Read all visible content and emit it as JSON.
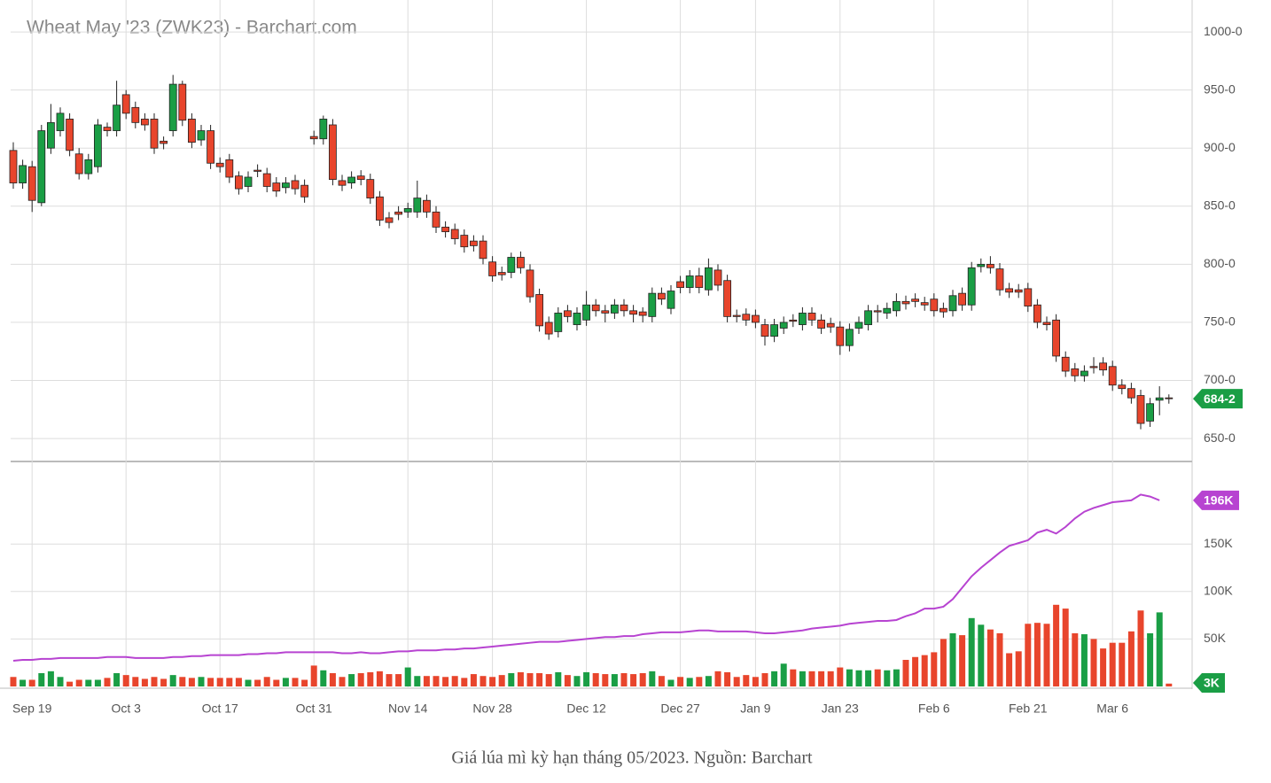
{
  "chart_data": {
    "type": "candlestick",
    "title": "Wheat May '23 (ZWK23) - Barchart.com",
    "caption": "Giá lúa mì kỳ hạn tháng 05/2023. Nguồn: Barchart",
    "categories": [
      null,
      null,
      "Sep 19",
      null,
      null,
      null,
      null,
      null,
      null,
      null,
      null,
      null,
      "Oct 3",
      null,
      null,
      null,
      null,
      null,
      null,
      null,
      null,
      null,
      "Oct 17",
      null,
      null,
      null,
      null,
      null,
      null,
      null,
      null,
      null,
      "Oct 31",
      null,
      null,
      null,
      null,
      null,
      null,
      null,
      null,
      null,
      "Nov 14",
      null,
      null,
      null,
      null,
      null,
      null,
      null,
      null,
      "Nov 28",
      null,
      null,
      null,
      null,
      null,
      null,
      null,
      null,
      null,
      "Dec 12",
      null,
      null,
      null,
      null,
      null,
      null,
      null,
      null,
      null,
      "Dec 27",
      null,
      null,
      null,
      null,
      null,
      null,
      null,
      "Jan 9",
      null,
      null,
      null,
      null,
      null,
      null,
      null,
      null,
      "Jan 23",
      null,
      null,
      null,
      null,
      null,
      null,
      null,
      null,
      null,
      "Feb 6",
      null,
      null,
      null,
      null,
      null,
      null,
      null,
      null,
      null,
      "Feb 21",
      null,
      null,
      null,
      null,
      null,
      null,
      null,
      null,
      "Mar 6",
      null,
      null,
      null,
      null,
      null,
      null
    ],
    "open": [
      898,
      870,
      884,
      853,
      900,
      915,
      925,
      895,
      878,
      884,
      918,
      915,
      946,
      935,
      925,
      925,
      906,
      915,
      955,
      925,
      907,
      915,
      887,
      890,
      876,
      867,
      881,
      878,
      870,
      866,
      872,
      868,
      910,
      908,
      920,
      872,
      870,
      876,
      873,
      858,
      840,
      845,
      845,
      845,
      855,
      845,
      832,
      830,
      825,
      820,
      820,
      802,
      793,
      793,
      806,
      795,
      774,
      750,
      742,
      760,
      748,
      752,
      765,
      760,
      758,
      765,
      760,
      759,
      755,
      775,
      762,
      785,
      780,
      790,
      778,
      795,
      786,
      756,
      757,
      756,
      748,
      738,
      745,
      752,
      748,
      758,
      752,
      749,
      746,
      730,
      745,
      748,
      760,
      758,
      760,
      768,
      770,
      767,
      770,
      762,
      760,
      775,
      765,
      798,
      800,
      796,
      779,
      778,
      779,
      765,
      750,
      752,
      720,
      710,
      704,
      712,
      715,
      712,
      696,
      693,
      687,
      665,
      683,
      685
    ],
    "high": [
      905,
      890,
      889,
      920,
      938,
      935,
      930,
      900,
      895,
      925,
      922,
      958,
      950,
      940,
      930,
      930,
      910,
      963,
      958,
      930,
      920,
      920,
      892,
      895,
      880,
      880,
      886,
      883,
      875,
      875,
      877,
      873,
      915,
      928,
      925,
      877,
      880,
      881,
      878,
      863,
      845,
      850,
      853,
      872,
      860,
      850,
      837,
      835,
      830,
      825,
      825,
      807,
      798,
      810,
      811,
      800,
      779,
      755,
      763,
      765,
      763,
      777,
      770,
      765,
      770,
      770,
      765,
      763,
      780,
      780,
      782,
      790,
      795,
      797,
      805,
      800,
      791,
      761,
      762,
      761,
      753,
      753,
      755,
      757,
      763,
      763,
      757,
      754,
      751,
      749,
      755,
      765,
      765,
      767,
      775,
      773,
      775,
      772,
      775,
      767,
      778,
      780,
      802,
      805,
      807,
      801,
      784,
      783,
      784,
      770,
      755,
      757,
      725,
      715,
      713,
      720,
      720,
      717,
      701,
      698,
      692,
      685,
      695,
      688
    ],
    "low": [
      865,
      865,
      845,
      850,
      895,
      910,
      893,
      873,
      873,
      879,
      910,
      910,
      925,
      917,
      915,
      895,
      899,
      910,
      919,
      900,
      902,
      882,
      879,
      870,
      860,
      862,
      875,
      862,
      858,
      861,
      860,
      853,
      903,
      903,
      868,
      863,
      865,
      868,
      852,
      833,
      831,
      838,
      840,
      840,
      840,
      827,
      823,
      817,
      810,
      811,
      800,
      785,
      786,
      788,
      792,
      767,
      742,
      735,
      737,
      750,
      743,
      747,
      755,
      750,
      753,
      755,
      750,
      750,
      750,
      765,
      757,
      775,
      775,
      775,
      773,
      777,
      750,
      750,
      747,
      745,
      730,
      733,
      740,
      746,
      743,
      747,
      740,
      741,
      722,
      725,
      740,
      743,
      750,
      753,
      755,
      761,
      763,
      760,
      755,
      754,
      755,
      760,
      760,
      793,
      792,
      773,
      771,
      771,
      759,
      745,
      743,
      716,
      703,
      699,
      699,
      706,
      704,
      691,
      688,
      680,
      658,
      660,
      670,
      680
    ],
    "close": [
      870,
      885,
      855,
      915,
      922,
      930,
      898,
      878,
      890,
      920,
      915,
      937,
      930,
      922,
      920,
      900,
      904,
      955,
      924,
      905,
      915,
      887,
      884,
      875,
      865,
      875,
      880,
      867,
      863,
      870,
      865,
      858,
      908,
      925,
      873,
      868,
      875,
      873,
      857,
      838,
      836,
      843,
      848,
      857,
      845,
      832,
      828,
      822,
      815,
      816,
      805,
      790,
      791,
      806,
      797,
      772,
      747,
      740,
      758,
      755,
      758,
      765,
      760,
      758,
      765,
      760,
      757,
      756,
      775,
      770,
      777,
      780,
      790,
      780,
      797,
      782,
      755,
      755,
      752,
      750,
      738,
      748,
      750,
      751,
      758,
      752,
      745,
      746,
      730,
      744,
      750,
      760,
      759,
      762,
      768,
      766,
      768,
      765,
      760,
      759,
      773,
      765,
      797,
      800,
      797,
      778,
      776,
      776,
      764,
      750,
      748,
      721,
      708,
      704,
      708,
      711,
      709,
      696,
      693,
      685,
      663,
      680,
      685,
      684.25
    ],
    "last_label": "684-2",
    "up_color": "#1a9e45",
    "down_color": "#e8452c",
    "ylim": [
      631,
      1027.5
    ],
    "yticks": [
      {
        "value": 1000,
        "label": "1000-0"
      },
      {
        "value": 950,
        "label": "950-0"
      },
      {
        "value": 900,
        "label": "900-0"
      },
      {
        "value": 850,
        "label": "850-0"
      },
      {
        "value": 800,
        "label": "800-0"
      },
      {
        "value": 750,
        "label": "750-0"
      },
      {
        "value": 700,
        "label": "700-0"
      },
      {
        "value": 650,
        "label": "650-0"
      }
    ],
    "volume": [
      10,
      7,
      7,
      14,
      16,
      10,
      5,
      7,
      7,
      7,
      9,
      14,
      12,
      10,
      8,
      10,
      8,
      12,
      10,
      9,
      10,
      9,
      9,
      9,
      9,
      7,
      7,
      10,
      7,
      9,
      9,
      7,
      22,
      17,
      14,
      10,
      13,
      14,
      15,
      16,
      13,
      13,
      20,
      11,
      11,
      11,
      10,
      11,
      9,
      13,
      11,
      10,
      12,
      14,
      15,
      14,
      14,
      13,
      15,
      12,
      11,
      15,
      14,
      13,
      13,
      14,
      13,
      14,
      16,
      11,
      7,
      10,
      9,
      10,
      11,
      16,
      15,
      10,
      12,
      10,
      14,
      16,
      24,
      18,
      16,
      16,
      16,
      16,
      20,
      18,
      17,
      17,
      18,
      17,
      18,
      28,
      31,
      33,
      36,
      50,
      56,
      54,
      72,
      65,
      60,
      56,
      35,
      37,
      66,
      67,
      66,
      86,
      82,
      56,
      55,
      50,
      40,
      46,
      46,
      58,
      80,
      56,
      78,
      3
    ],
    "volume_label": "3K",
    "open_interest": [
      27,
      28,
      28,
      29,
      29,
      30,
      30,
      30,
      30,
      30,
      31,
      31,
      31,
      30,
      30,
      30,
      30,
      31,
      31,
      32,
      32,
      33,
      33,
      33,
      33,
      34,
      34,
      35,
      35,
      36,
      36,
      36,
      36,
      36,
      36,
      35,
      35,
      36,
      35,
      35,
      36,
      37,
      37,
      38,
      38,
      38,
      39,
      39,
      40,
      40,
      41,
      42,
      43,
      44,
      45,
      46,
      47,
      47,
      47,
      48,
      49,
      50,
      51,
      52,
      52,
      53,
      53,
      55,
      56,
      57,
      57,
      57,
      58,
      59,
      59,
      58,
      58,
      58,
      58,
      57,
      56,
      56,
      57,
      58,
      59,
      61,
      62,
      63,
      64,
      66,
      67,
      68,
      69,
      69,
      70,
      74,
      77,
      82,
      82,
      84,
      92,
      104,
      116,
      125,
      133,
      141,
      148,
      151,
      154,
      162,
      165,
      161,
      168,
      177,
      184,
      188,
      191,
      194,
      195,
      196,
      202,
      200,
      196,
      null
    ],
    "oi_label": "196K",
    "oi_color": "#b743d1",
    "y2lim": [
      0,
      236
    ],
    "y2ticks": [
      {
        "value": 50,
        "label": "50K"
      },
      {
        "value": 100,
        "label": "100K"
      },
      {
        "value": 150,
        "label": "150K"
      }
    ],
    "grid": true
  }
}
